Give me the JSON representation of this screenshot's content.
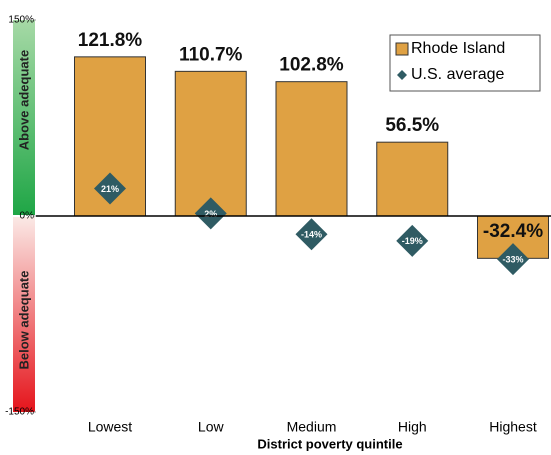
{
  "chart_data": {
    "type": "bar",
    "categories": [
      "Lowest",
      "Low",
      "Medium",
      "High",
      "Highest"
    ],
    "series": [
      {
        "name": "Rhode Island",
        "color": "#dfa143",
        "values": [
          121.8,
          110.7,
          102.8,
          56.5,
          -32.4
        ],
        "value_labels": [
          "121.8%",
          "110.7%",
          "102.8%",
          "56.5%",
          "-32.4%"
        ]
      },
      {
        "name": "U.S. average",
        "color": "#2f5b63",
        "marker": "diamond",
        "values": [
          21,
          2,
          -14,
          -19,
          -33
        ],
        "value_labels": [
          "21%",
          "2%",
          "-14%",
          "-19%",
          "-33%"
        ]
      }
    ],
    "ylim": [
      -150,
      150
    ],
    "yticks": [
      {
        "value": -150,
        "label": "-150%"
      },
      {
        "value": 0,
        "label": "0%"
      },
      {
        "value": 150,
        "label": "150%"
      }
    ],
    "x_label": "District poverty quintile",
    "annotations": [
      "Above adequate",
      "Below adequate"
    ],
    "legend": "upper right"
  }
}
